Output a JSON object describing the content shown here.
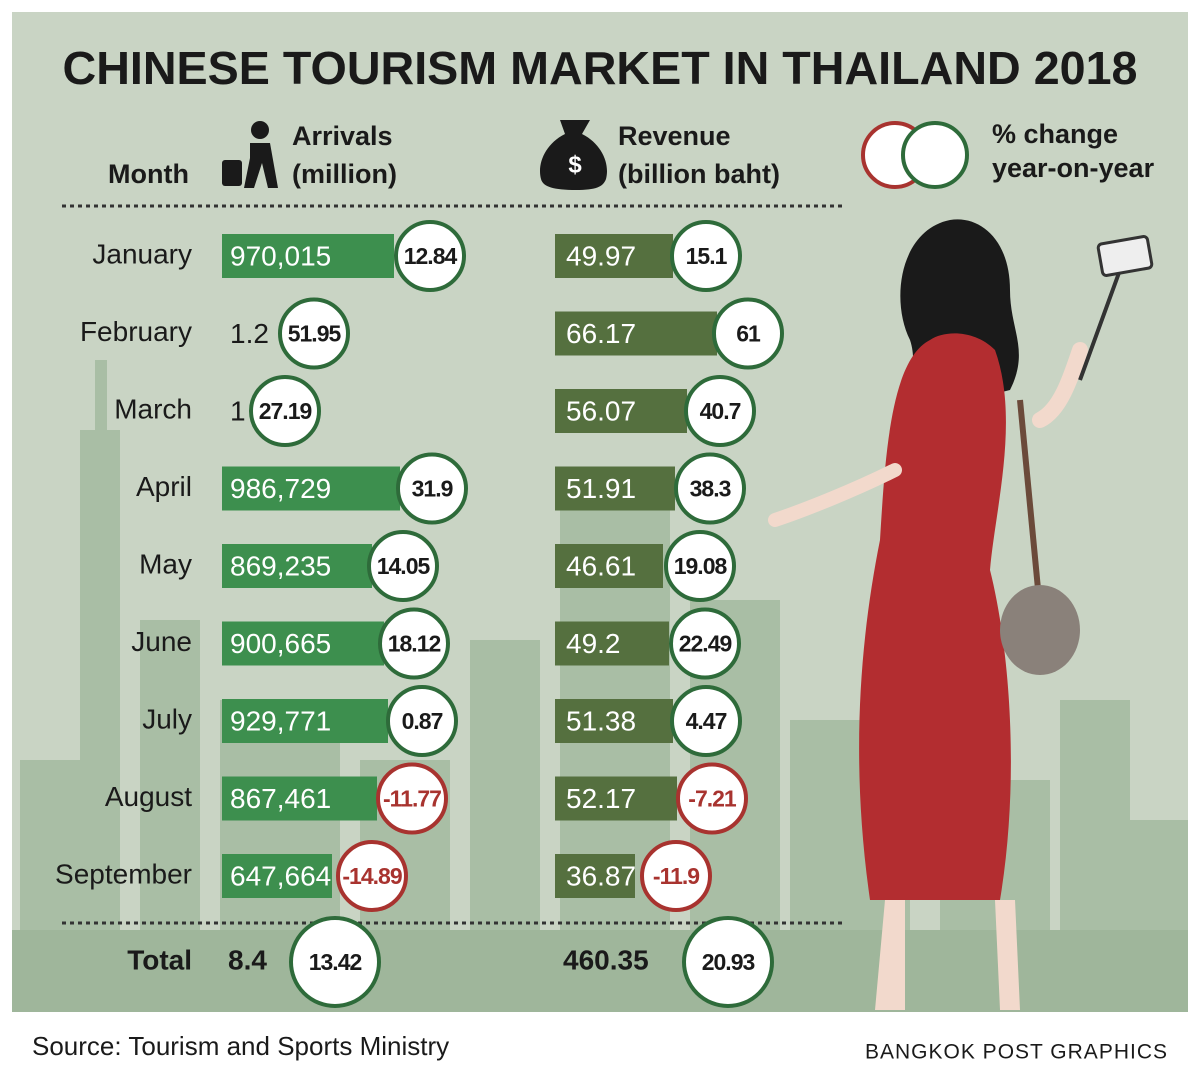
{
  "title": "CHINESE TOURISM MARKET IN THAILAND 2018",
  "header": {
    "month": "Month",
    "arrivals": [
      "Arrivals",
      "(million)"
    ],
    "revenue": [
      "Revenue",
      "(billion baht)"
    ],
    "legend": [
      "% change",
      "year-on-year"
    ]
  },
  "rows": [
    {
      "month": "January",
      "arrivals": "970,015",
      "arrivals_change": "12.84",
      "revenue": "49.97",
      "revenue_change": "15.1"
    },
    {
      "month": "February",
      "arrivals": "1.2",
      "arrivals_change": "51.95",
      "revenue": "66.17",
      "revenue_change": "61"
    },
    {
      "month": "March",
      "arrivals": "1",
      "arrivals_change": "27.19",
      "revenue": "56.07",
      "revenue_change": "40.7"
    },
    {
      "month": "April",
      "arrivals": "986,729",
      "arrivals_change": "31.9",
      "revenue": "51.91",
      "revenue_change": "38.3"
    },
    {
      "month": "May",
      "arrivals": "869,235",
      "arrivals_change": "14.05",
      "revenue": "46.61",
      "revenue_change": "19.08"
    },
    {
      "month": "June",
      "arrivals": "900,665",
      "arrivals_change": "18.12",
      "revenue": "49.2",
      "revenue_change": "22.49"
    },
    {
      "month": "July",
      "arrivals": "929,771",
      "arrivals_change": "0.87",
      "revenue": "51.38",
      "revenue_change": "4.47"
    },
    {
      "month": "August",
      "arrivals": "867,461",
      "arrivals_change": "-11.77",
      "revenue": "52.17",
      "revenue_change": "-7.21"
    },
    {
      "month": "September",
      "arrivals": "647,664",
      "arrivals_change": "-14.89",
      "revenue": "36.87",
      "revenue_change": "-11.9"
    }
  ],
  "total": {
    "label": "Total",
    "arrivals": "8.4",
    "arrivals_change": "13.42",
    "revenue": "460.35",
    "revenue_change": "20.93"
  },
  "source": "Source: Tourism and Sports Ministry",
  "credit": "BANGKOK POST GRAPHICS"
}
